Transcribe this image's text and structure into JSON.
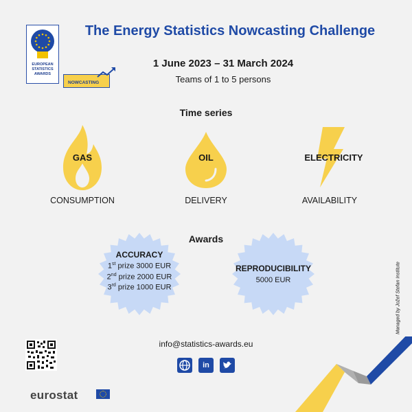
{
  "header": {
    "title": "The Energy Statistics Nowcasting Challenge",
    "dates": "1 June 2023 – 31 March 2024",
    "teams": "Teams of 1 to 5 persons"
  },
  "badge": {
    "line1": "EUROPEAN",
    "line2": "STATISTICS",
    "line3": "AWARDS",
    "tag": "NOWCASTING"
  },
  "time_series": {
    "heading": "Time series",
    "items": [
      {
        "label": "GAS",
        "sub": "CONSUMPTION",
        "icon": "flame-icon"
      },
      {
        "label": "OIL",
        "sub": "DELIVERY",
        "icon": "oil-drop-icon"
      },
      {
        "label": "ELECTRICITY",
        "sub": "AVAILABILITY",
        "icon": "lightning-icon"
      }
    ]
  },
  "awards": {
    "heading": "Awards",
    "accuracy": {
      "title": "ACCURACY",
      "prizes": [
        {
          "ord": "1",
          "sup": "st",
          "text": "prize 3000 EUR"
        },
        {
          "ord": "2",
          "sup": "nd",
          "text": "prize 2000 EUR"
        },
        {
          "ord": "3",
          "sup": "rd",
          "text": "prize 1000 EUR"
        }
      ]
    },
    "reproducibility": {
      "title": "REPRODUCIBILITY",
      "amount": "5000 EUR"
    }
  },
  "contact": {
    "email": "info@statistics-awards.eu",
    "social": [
      {
        "name": "website",
        "icon": "globe-icon",
        "glyph": "🌐"
      },
      {
        "name": "linkedin",
        "icon": "linkedin-icon",
        "glyph": "in"
      },
      {
        "name": "twitter",
        "icon": "twitter-icon",
        "glyph": "t"
      }
    ]
  },
  "managed_by": "Managed by Jožef Stefan Institute",
  "footer": {
    "brand": "eurostat"
  },
  "colors": {
    "title_blue": "#1f4aa6",
    "yellow": "#f7d04c",
    "bubble": "#c7d9f6",
    "background": "#f2f2f2"
  }
}
